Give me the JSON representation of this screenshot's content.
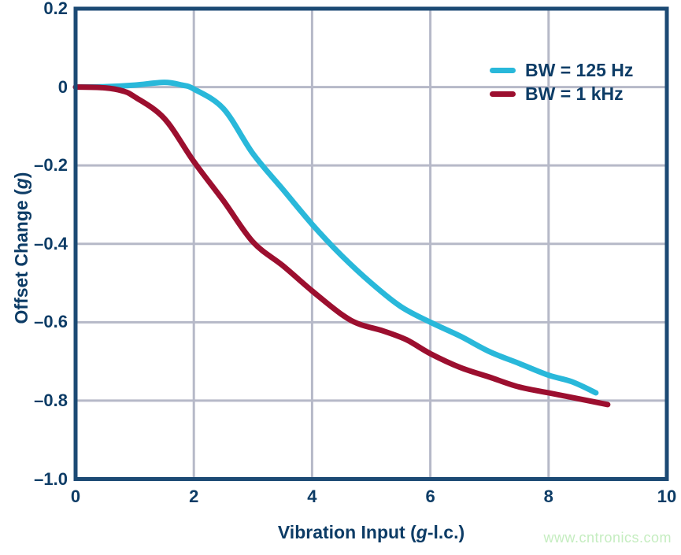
{
  "chart_data": {
    "type": "line",
    "title": "",
    "xlabel": "Vibration Input (g-l.c.)",
    "ylabel": "Offset Change (g)",
    "xlabel_parts": [
      {
        "text": "Vibration Input (",
        "italic": false
      },
      {
        "text": "g",
        "italic": true
      },
      {
        "text": "-l.c.)",
        "italic": false
      }
    ],
    "ylabel_parts": [
      {
        "text": "Offset Change (",
        "italic": false
      },
      {
        "text": "g",
        "italic": true
      },
      {
        "text": ")",
        "italic": false
      }
    ],
    "xlim": [
      0,
      10
    ],
    "ylim": [
      -1.0,
      0.2
    ],
    "grid": true,
    "legend_position": "top-right",
    "x_ticks": [
      {
        "value": 0,
        "label": "0"
      },
      {
        "value": 2,
        "label": "2"
      },
      {
        "value": 4,
        "label": "4"
      },
      {
        "value": 6,
        "label": "6"
      },
      {
        "value": 8,
        "label": "8"
      },
      {
        "value": 10,
        "label": "10"
      }
    ],
    "y_ticks": [
      {
        "value": 0.2,
        "label": "0.2"
      },
      {
        "value": 0,
        "label": "0"
      },
      {
        "value": -0.2,
        "label": "–0.2"
      },
      {
        "value": -0.4,
        "label": "–0.4"
      },
      {
        "value": -0.6,
        "label": "–0.6"
      },
      {
        "value": -0.8,
        "label": "–0.8"
      },
      {
        "value": -1.0,
        "label": "–1.0"
      }
    ],
    "series": [
      {
        "name": "BW = 125 Hz",
        "color": "#29b8da",
        "points": [
          [
            0,
            0
          ],
          [
            0.5,
            0.001
          ],
          [
            1.0,
            0.005
          ],
          [
            1.5,
            0.012
          ],
          [
            1.8,
            0.005
          ],
          [
            2.0,
            -0.005
          ],
          [
            2.5,
            -0.055
          ],
          [
            3.0,
            -0.17
          ],
          [
            3.5,
            -0.26
          ],
          [
            4.0,
            -0.35
          ],
          [
            4.5,
            -0.43
          ],
          [
            5.0,
            -0.5
          ],
          [
            5.5,
            -0.56
          ],
          [
            6.0,
            -0.6
          ],
          [
            6.5,
            -0.635
          ],
          [
            7.0,
            -0.675
          ],
          [
            7.5,
            -0.705
          ],
          [
            8.0,
            -0.735
          ],
          [
            8.4,
            -0.752
          ],
          [
            8.8,
            -0.78
          ]
        ]
      },
      {
        "name": "BW = 1 kHz",
        "color": "#9c0f2f",
        "points": [
          [
            0,
            0
          ],
          [
            0.5,
            -0.002
          ],
          [
            0.8,
            -0.01
          ],
          [
            1.0,
            -0.025
          ],
          [
            1.5,
            -0.08
          ],
          [
            2.0,
            -0.19
          ],
          [
            2.5,
            -0.29
          ],
          [
            3.0,
            -0.395
          ],
          [
            3.5,
            -0.455
          ],
          [
            4.0,
            -0.52
          ],
          [
            4.5,
            -0.58
          ],
          [
            4.8,
            -0.605
          ],
          [
            5.2,
            -0.622
          ],
          [
            5.6,
            -0.645
          ],
          [
            6.0,
            -0.68
          ],
          [
            6.5,
            -0.715
          ],
          [
            7.0,
            -0.74
          ],
          [
            7.5,
            -0.765
          ],
          [
            8.0,
            -0.78
          ],
          [
            8.5,
            -0.795
          ],
          [
            9.0,
            -0.81
          ]
        ]
      }
    ]
  },
  "watermark": {
    "text": "www.cntronics.com",
    "color": "#c5edc0"
  },
  "theme": {
    "text_navy": "#0d3c66",
    "border_navy": "#1c4a74",
    "grid": "#b6b9c8",
    "background": "#ffffff"
  }
}
